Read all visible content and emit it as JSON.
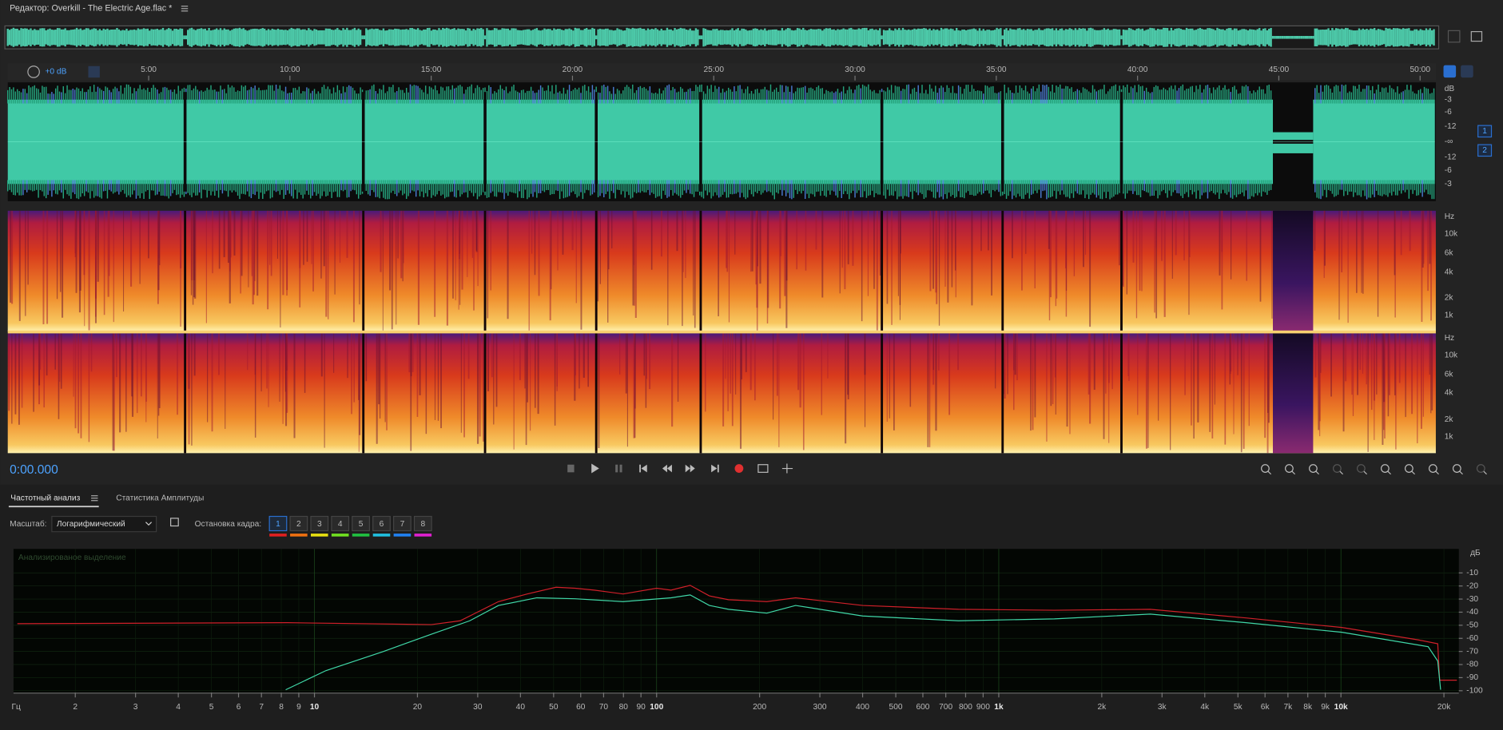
{
  "header": {
    "title": "Редактор: Overkill - The Electric Age.flac *"
  },
  "timeline": {
    "gain": "+0 dB",
    "labels": [
      "5:00",
      "10:00",
      "15:00",
      "20:00",
      "25:00",
      "30:00",
      "35:00",
      "40:00",
      "45:00",
      "50:00"
    ]
  },
  "waveform": {
    "scale_labels": [
      "dB",
      "-3",
      "-6",
      "-12",
      "-∞",
      "-12",
      "-6",
      "-3"
    ],
    "channels": [
      "1",
      "2"
    ]
  },
  "spectrogram": {
    "channels": [
      {
        "labels": [
          "Hz",
          "10k",
          "6k",
          "4k",
          "2k",
          "1k"
        ]
      },
      {
        "labels": [
          "Hz",
          "10k",
          "6k",
          "4k",
          "2k",
          "1k"
        ]
      }
    ]
  },
  "transport": {
    "time": "0:00.000"
  },
  "panel": {
    "tabs": [
      "Частотный анализ",
      "Статистика Амплитуды"
    ],
    "scale_label": "Масштаб:",
    "scale_value": "Логарифмический",
    "freeze_label": "Остановка кадра:",
    "freeze_slots": [
      "1",
      "2",
      "3",
      "4",
      "5",
      "6",
      "7",
      "8"
    ],
    "plot_label": "Анализированое выделение",
    "db_axis": {
      "unit": "дБ",
      "ticks": [
        -10,
        -20,
        -30,
        -40,
        -50,
        -60,
        -70,
        -80,
        -90,
        -100
      ]
    },
    "freq_axis": {
      "unit": "Гц",
      "ticks": [
        2,
        3,
        4,
        5,
        6,
        7,
        8,
        9,
        10,
        20,
        30,
        40,
        50,
        60,
        70,
        80,
        90,
        100,
        200,
        300,
        400,
        500,
        600,
        700,
        800,
        900,
        {
          "value": 1000,
          "label": "1k"
        },
        {
          "value": 2000,
          "label": "2k"
        },
        {
          "value": 3000,
          "label": "3k"
        },
        {
          "value": 4000,
          "label": "4k"
        },
        {
          "value": 5000,
          "label": "5k"
        },
        {
          "value": 6000,
          "label": "6k"
        },
        {
          "value": 7000,
          "label": "7k"
        },
        {
          "value": 8000,
          "label": "8k"
        },
        {
          "value": 9000,
          "label": "9k"
        },
        {
          "value": 10000,
          "label": "10k"
        },
        {
          "value": 20000,
          "label": "20k"
        }
      ]
    }
  }
}
